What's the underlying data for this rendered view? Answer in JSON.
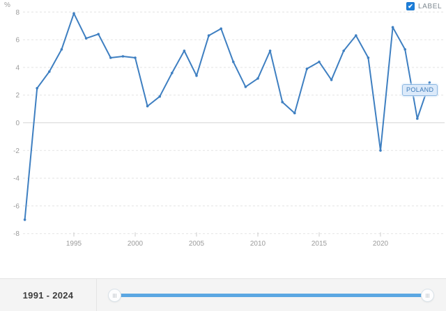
{
  "chart_data": {
    "type": "line",
    "title": "",
    "xlabel": "",
    "ylabel": "%",
    "series_name": "POLAND",
    "x": [
      1991,
      1992,
      1993,
      1994,
      1995,
      1996,
      1997,
      1998,
      1999,
      2000,
      2001,
      2002,
      2003,
      2004,
      2005,
      2006,
      2007,
      2008,
      2009,
      2010,
      2011,
      2012,
      2013,
      2014,
      2015,
      2016,
      2017,
      2018,
      2019,
      2020,
      2021,
      2022,
      2023,
      2024
    ],
    "values": [
      -7.0,
      2.5,
      3.7,
      5.3,
      7.9,
      6.1,
      6.4,
      4.7,
      4.8,
      4.7,
      1.2,
      1.9,
      3.6,
      5.2,
      3.4,
      6.3,
      6.8,
      4.4,
      2.6,
      3.2,
      5.2,
      1.5,
      0.7,
      3.9,
      4.4,
      3.1,
      5.2,
      6.3,
      4.7,
      -2.0,
      6.9,
      5.3,
      0.3,
      2.9
    ],
    "ylim": [
      -8,
      8
    ],
    "y_ticks": [
      8,
      6,
      4,
      2,
      0,
      -2,
      -4,
      -6,
      -8
    ],
    "x_ticks": [
      1995,
      2000,
      2005,
      2010,
      2015,
      2020
    ],
    "grid": "horizontal-dashed",
    "legend_position": "top-right",
    "marker": "dot"
  },
  "legend": {
    "label": "LABEL",
    "checked": true,
    "check_glyph": "✔"
  },
  "annotation": {
    "series_label": "POLAND"
  },
  "footer": {
    "range_label": "1991 - 2024"
  },
  "colors": {
    "line": "#3e7fc1",
    "slider_fill": "#5ba7e2",
    "checkbox": "#1d7ed9",
    "annotation_bg": "#dceafa",
    "annotation_border": "#8ab6e0",
    "annotation_text": "#3b79b8",
    "footer_bg": "#f4f4f4",
    "axis_text": "#9b9b9b"
  }
}
